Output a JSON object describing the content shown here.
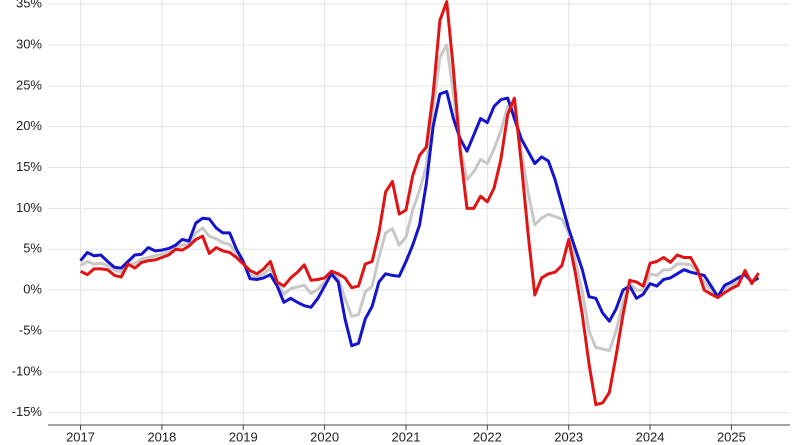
{
  "chart_data": {
    "type": "line",
    "x": [
      2017,
      2017.083,
      2017.167,
      2017.25,
      2017.333,
      2017.417,
      2017.5,
      2017.583,
      2017.667,
      2017.75,
      2017.833,
      2017.917,
      2018,
      2018.083,
      2018.167,
      2018.25,
      2018.333,
      2018.417,
      2018.5,
      2018.583,
      2018.667,
      2018.75,
      2018.833,
      2018.917,
      2019,
      2019.083,
      2019.167,
      2019.25,
      2019.333,
      2019.417,
      2019.5,
      2019.583,
      2019.667,
      2019.75,
      2019.833,
      2019.917,
      2020,
      2020.083,
      2020.167,
      2020.25,
      2020.333,
      2020.417,
      2020.5,
      2020.583,
      2020.667,
      2020.75,
      2020.833,
      2020.917,
      2021,
      2021.083,
      2021.167,
      2021.25,
      2021.333,
      2021.417,
      2021.5,
      2021.583,
      2021.667,
      2021.75,
      2021.833,
      2021.917,
      2022,
      2022.083,
      2022.167,
      2022.25,
      2022.333,
      2022.417,
      2022.5,
      2022.583,
      2022.667,
      2022.75,
      2022.833,
      2022.917,
      2023,
      2023.083,
      2023.167,
      2023.25,
      2023.333,
      2023.417,
      2023.5,
      2023.583,
      2023.667,
      2023.75,
      2023.833,
      2023.917,
      2024,
      2024.083,
      2024.167,
      2024.25,
      2024.333,
      2024.417,
      2024.5,
      2024.583,
      2024.667,
      2024.75,
      2024.833,
      2024.917,
      2025,
      2025.083,
      2025.167,
      2025.25,
      2025.333
    ],
    "series": [
      {
        "color": "#c8c8c8",
        "values": [
          3.0,
          3.5,
          3.2,
          3.3,
          3.0,
          2.5,
          2.2,
          3.1,
          3.3,
          3.8,
          4.0,
          4.2,
          4.4,
          4.6,
          5.2,
          5.5,
          5.7,
          7.0,
          7.6,
          6.6,
          6.3,
          5.8,
          5.6,
          4.5,
          3.4,
          1.9,
          1.6,
          2.0,
          2.7,
          0.8,
          -0.5,
          0.2,
          0.4,
          0.6,
          -0.4,
          0.1,
          1.0,
          2.2,
          1.5,
          -1.0,
          -3.2,
          -3.0,
          -0.2,
          0.5,
          4.0,
          7.0,
          7.5,
          5.5,
          6.5,
          9.8,
          12.2,
          15.2,
          22.0,
          28.5,
          30.0,
          24.0,
          17.5,
          13.5,
          14.5,
          16.0,
          15.5,
          17.3,
          19.5,
          22.5,
          22.3,
          17.0,
          12.0,
          8.0,
          8.8,
          9.3,
          9.0,
          8.7,
          7.0,
          3.5,
          -0.2,
          -5.0,
          -7.0,
          -7.2,
          -7.4,
          -5.0,
          -1.5,
          0.8,
          0.0,
          0.0,
          2.0,
          1.8,
          2.5,
          2.5,
          3.2,
          3.2,
          3.1,
          2.3,
          0.9,
          0.0,
          -0.8,
          0.2,
          0.6,
          1.0,
          2.1,
          1.1,
          1.8
        ]
      },
      {
        "color": "#1414cc",
        "values": [
          3.6,
          4.6,
          4.2,
          4.3,
          3.5,
          2.8,
          2.7,
          3.5,
          4.3,
          4.4,
          5.2,
          4.8,
          4.9,
          5.1,
          5.5,
          6.2,
          6.0,
          8.2,
          8.8,
          8.7,
          7.6,
          7.0,
          7.0,
          5.0,
          3.5,
          1.4,
          1.3,
          1.5,
          1.9,
          0.5,
          -1.5,
          -1.0,
          -1.5,
          -1.9,
          -2.1,
          -1.0,
          0.5,
          2.0,
          1.0,
          -3.5,
          -6.8,
          -6.5,
          -3.5,
          -2.0,
          1.0,
          2.0,
          1.8,
          1.7,
          3.5,
          5.5,
          8.0,
          13.0,
          20.0,
          24.0,
          24.3,
          21.0,
          18.5,
          17.0,
          19.0,
          21.0,
          20.5,
          22.5,
          23.3,
          23.5,
          21.0,
          18.5,
          17.0,
          15.5,
          16.3,
          15.8,
          13.5,
          10.5,
          7.5,
          5.0,
          2.5,
          -0.8,
          -1.0,
          -2.8,
          -3.8,
          -2.3,
          0.0,
          0.5,
          -1.0,
          -0.5,
          0.8,
          0.5,
          1.3,
          1.5,
          2.0,
          2.5,
          2.2,
          2.0,
          1.8,
          0.5,
          -0.8,
          0.6,
          1.0,
          1.5,
          1.9,
          1.0,
          1.5
        ]
      },
      {
        "color": "#e01414",
        "values": [
          2.3,
          1.9,
          2.6,
          2.6,
          2.5,
          1.8,
          1.6,
          3.2,
          2.7,
          3.4,
          3.6,
          3.7,
          4.0,
          4.3,
          5.0,
          4.9,
          5.4,
          6.2,
          6.6,
          4.5,
          5.2,
          4.8,
          4.6,
          4.0,
          3.2,
          2.4,
          2.0,
          2.6,
          3.5,
          1.0,
          0.5,
          1.5,
          2.2,
          3.1,
          1.2,
          1.3,
          1.5,
          2.3,
          2.0,
          1.5,
          0.3,
          0.5,
          3.2,
          3.5,
          7.0,
          12.0,
          13.3,
          9.3,
          9.8,
          14.0,
          16.5,
          17.5,
          24.0,
          33.0,
          35.3,
          27.0,
          17.0,
          10.0,
          10.0,
          11.5,
          10.8,
          12.5,
          16.0,
          21.5,
          23.5,
          15.5,
          7.0,
          -0.6,
          1.5,
          2.0,
          2.2,
          3.0,
          6.2,
          2.0,
          -3.0,
          -9.0,
          -14.0,
          -13.8,
          -12.5,
          -8.0,
          -3.0,
          1.2,
          1.0,
          0.5,
          3.3,
          3.5,
          4.0,
          3.4,
          4.3,
          4.0,
          4.0,
          2.5,
          0.0,
          -0.5,
          -0.9,
          -0.3,
          0.2,
          0.6,
          2.4,
          0.8,
          2.1
        ]
      }
    ],
    "xlim": [
      2016.6,
      2025.72
    ],
    "xticks": [
      2017,
      2018,
      2019,
      2020,
      2021,
      2022,
      2023,
      2024,
      2025
    ],
    "ylim": [
      -16.5,
      35.5
    ],
    "yticks": [
      {
        "value": -15,
        "label": "-15%"
      },
      {
        "value": -10,
        "label": "-10%"
      },
      {
        "value": -5,
        "label": "-5%"
      },
      {
        "value": 0,
        "label": "0%"
      },
      {
        "value": 5,
        "label": "5%"
      },
      {
        "value": 10,
        "label": "10%"
      },
      {
        "value": 15,
        "label": "15%"
      },
      {
        "value": 20,
        "label": "20%"
      },
      {
        "value": 25,
        "label": "25%"
      },
      {
        "value": 30,
        "label": "30%"
      },
      {
        "value": 35,
        "label": "35%"
      }
    ],
    "grid": true
  }
}
